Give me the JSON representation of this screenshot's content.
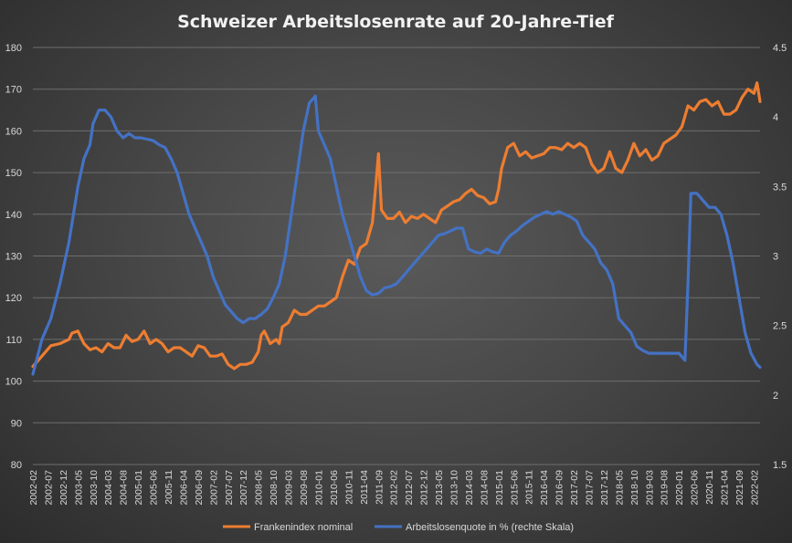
{
  "chart_data": {
    "type": "line",
    "title": "Schweizer Arbeitslosenrate auf 20-Jahre-Tief",
    "xlabel": "",
    "ylabel_left": "",
    "ylabel_right": "",
    "ylim_left": [
      80,
      180
    ],
    "yticks_left": [
      80,
      90,
      100,
      110,
      120,
      130,
      140,
      150,
      160,
      170,
      180
    ],
    "ylim_right": [
      1.5,
      4.5
    ],
    "yticks_right": [
      "1.5",
      "2",
      "2.5",
      "3",
      "3.5",
      "4",
      "4.5"
    ],
    "x_start": "2002-02",
    "x_end": "2022-04",
    "xtick_labels": [
      "2002-02",
      "2002-07",
      "2002-12",
      "2003-05",
      "2003-10",
      "2004-03",
      "2004-08",
      "2005-01",
      "2005-06",
      "2005-11",
      "2006-04",
      "2006-09",
      "2007-02",
      "2007-07",
      "2007-12",
      "2008-05",
      "2008-10",
      "2009-03",
      "2009-08",
      "2010-01",
      "2010-06",
      "2010-11",
      "2011-04",
      "2011-09",
      "2012-02",
      "2012-07",
      "2012-12",
      "2013-05",
      "2013-10",
      "2014-03",
      "2014-08",
      "2015-01",
      "2015-06",
      "2015-11",
      "2016-04",
      "2016-09",
      "2017-02",
      "2017-07",
      "2017-12",
      "2018-05",
      "2018-10",
      "2019-03",
      "2019-08",
      "2020-01",
      "2020-06",
      "2020-11",
      "2021-04",
      "2021-09",
      "2022-02"
    ],
    "grid": true,
    "legend_position": "bottom",
    "series": [
      {
        "name": "Frankenindex nominal",
        "axis": "left",
        "color": "#ed7d31",
        "points": [
          [
            "2002-02",
            103.5
          ],
          [
            "2002-05",
            106
          ],
          [
            "2002-08",
            108.5
          ],
          [
            "2002-11",
            109
          ],
          [
            "2003-02",
            110
          ],
          [
            "2003-03",
            111.5
          ],
          [
            "2003-05",
            112
          ],
          [
            "2003-07",
            109
          ],
          [
            "2003-09",
            107.5
          ],
          [
            "2003-11",
            108
          ],
          [
            "2004-01",
            107
          ],
          [
            "2004-03",
            109
          ],
          [
            "2004-05",
            108
          ],
          [
            "2004-07",
            108
          ],
          [
            "2004-09",
            111
          ],
          [
            "2004-11",
            109.5
          ],
          [
            "2005-01",
            110
          ],
          [
            "2005-03",
            112
          ],
          [
            "2005-05",
            109
          ],
          [
            "2005-07",
            110
          ],
          [
            "2005-09",
            109
          ],
          [
            "2005-11",
            107
          ],
          [
            "2006-01",
            108
          ],
          [
            "2006-03",
            108
          ],
          [
            "2006-05",
            107
          ],
          [
            "2006-07",
            106
          ],
          [
            "2006-09",
            108.5
          ],
          [
            "2006-11",
            108
          ],
          [
            "2007-01",
            106
          ],
          [
            "2007-03",
            106
          ],
          [
            "2007-05",
            106.5
          ],
          [
            "2007-07",
            104
          ],
          [
            "2007-09",
            103
          ],
          [
            "2007-11",
            104
          ],
          [
            "2008-01",
            104
          ],
          [
            "2008-03",
            104.5
          ],
          [
            "2008-05",
            107
          ],
          [
            "2008-06",
            111
          ],
          [
            "2008-07",
            112
          ],
          [
            "2008-09",
            109
          ],
          [
            "2008-11",
            110
          ],
          [
            "2008-12",
            109
          ],
          [
            "2009-01",
            113
          ],
          [
            "2009-03",
            114
          ],
          [
            "2009-05",
            117
          ],
          [
            "2009-07",
            116
          ],
          [
            "2009-09",
            116
          ],
          [
            "2009-11",
            117
          ],
          [
            "2010-01",
            118
          ],
          [
            "2010-03",
            118
          ],
          [
            "2010-05",
            119
          ],
          [
            "2010-07",
            120
          ],
          [
            "2010-09",
            125
          ],
          [
            "2010-11",
            129
          ],
          [
            "2011-01",
            128
          ],
          [
            "2011-03",
            132
          ],
          [
            "2011-05",
            133
          ],
          [
            "2011-07",
            138
          ],
          [
            "2011-08",
            146
          ],
          [
            "2011-09",
            154.5
          ],
          [
            "2011-10",
            141
          ],
          [
            "2011-12",
            139
          ],
          [
            "2012-02",
            139
          ],
          [
            "2012-04",
            140.5
          ],
          [
            "2012-06",
            138
          ],
          [
            "2012-08",
            139.5
          ],
          [
            "2012-10",
            139
          ],
          [
            "2012-12",
            140
          ],
          [
            "2013-02",
            139
          ],
          [
            "2013-04",
            138
          ],
          [
            "2013-06",
            141
          ],
          [
            "2013-08",
            142
          ],
          [
            "2013-10",
            143
          ],
          [
            "2013-12",
            143.5
          ],
          [
            "2014-02",
            145
          ],
          [
            "2014-04",
            146
          ],
          [
            "2014-06",
            144.5
          ],
          [
            "2014-08",
            144
          ],
          [
            "2014-10",
            142.5
          ],
          [
            "2014-12",
            143
          ],
          [
            "2015-01",
            146
          ],
          [
            "2015-02",
            151
          ],
          [
            "2015-04",
            156
          ],
          [
            "2015-06",
            157
          ],
          [
            "2015-08",
            154
          ],
          [
            "2015-10",
            155
          ],
          [
            "2015-12",
            153.5
          ],
          [
            "2016-02",
            154
          ],
          [
            "2016-04",
            154.5
          ],
          [
            "2016-06",
            156
          ],
          [
            "2016-08",
            156
          ],
          [
            "2016-10",
            155.5
          ],
          [
            "2016-12",
            157
          ],
          [
            "2017-02",
            156
          ],
          [
            "2017-04",
            157
          ],
          [
            "2017-06",
            156
          ],
          [
            "2017-08",
            152
          ],
          [
            "2017-10",
            150
          ],
          [
            "2017-12",
            151
          ],
          [
            "2018-02",
            155
          ],
          [
            "2018-04",
            151
          ],
          [
            "2018-06",
            150
          ],
          [
            "2018-08",
            153
          ],
          [
            "2018-10",
            157
          ],
          [
            "2018-12",
            154
          ],
          [
            "2019-02",
            155.5
          ],
          [
            "2019-04",
            153
          ],
          [
            "2019-06",
            154
          ],
          [
            "2019-08",
            157
          ],
          [
            "2019-10",
            158
          ],
          [
            "2019-12",
            159
          ],
          [
            "2020-02",
            161
          ],
          [
            "2020-04",
            166
          ],
          [
            "2020-06",
            165
          ],
          [
            "2020-08",
            167
          ],
          [
            "2020-10",
            167.5
          ],
          [
            "2020-12",
            166
          ],
          [
            "2021-02",
            167
          ],
          [
            "2021-04",
            164
          ],
          [
            "2021-06",
            164
          ],
          [
            "2021-08",
            165
          ],
          [
            "2021-10",
            168
          ],
          [
            "2021-12",
            170
          ],
          [
            "2022-02",
            169
          ],
          [
            "2022-03",
            171.5
          ],
          [
            "2022-04",
            167
          ]
        ]
      },
      {
        "name": "Arbeitslosenquote in % (rechte Skala)",
        "axis": "right",
        "color": "#4472c4",
        "points": [
          [
            "2002-02",
            2.15
          ],
          [
            "2002-05",
            2.4
          ],
          [
            "2002-08",
            2.55
          ],
          [
            "2002-11",
            2.8
          ],
          [
            "2003-02",
            3.1
          ],
          [
            "2003-05",
            3.5
          ],
          [
            "2003-07",
            3.7
          ],
          [
            "2003-09",
            3.8
          ],
          [
            "2003-10",
            3.95
          ],
          [
            "2003-12",
            4.05
          ],
          [
            "2004-02",
            4.05
          ],
          [
            "2004-04",
            4.0
          ],
          [
            "2004-06",
            3.9
          ],
          [
            "2004-08",
            3.85
          ],
          [
            "2004-10",
            3.88
          ],
          [
            "2004-12",
            3.85
          ],
          [
            "2005-02",
            3.85
          ],
          [
            "2005-04",
            3.84
          ],
          [
            "2005-06",
            3.83
          ],
          [
            "2005-08",
            3.8
          ],
          [
            "2005-10",
            3.78
          ],
          [
            "2005-12",
            3.7
          ],
          [
            "2006-02",
            3.6
          ],
          [
            "2006-04",
            3.45
          ],
          [
            "2006-06",
            3.3
          ],
          [
            "2006-08",
            3.2
          ],
          [
            "2006-10",
            3.1
          ],
          [
            "2006-12",
            3.0
          ],
          [
            "2007-02",
            2.85
          ],
          [
            "2007-04",
            2.75
          ],
          [
            "2007-06",
            2.65
          ],
          [
            "2007-08",
            2.6
          ],
          [
            "2007-10",
            2.55
          ],
          [
            "2007-12",
            2.52
          ],
          [
            "2008-02",
            2.55
          ],
          [
            "2008-04",
            2.55
          ],
          [
            "2008-06",
            2.58
          ],
          [
            "2008-08",
            2.62
          ],
          [
            "2008-10",
            2.7
          ],
          [
            "2008-12",
            2.8
          ],
          [
            "2009-02",
            3.0
          ],
          [
            "2009-04",
            3.3
          ],
          [
            "2009-06",
            3.6
          ],
          [
            "2009-08",
            3.9
          ],
          [
            "2009-10",
            4.1
          ],
          [
            "2009-12",
            4.15
          ],
          [
            "2010-01",
            3.9
          ],
          [
            "2010-03",
            3.8
          ],
          [
            "2010-05",
            3.7
          ],
          [
            "2010-07",
            3.5
          ],
          [
            "2010-09",
            3.3
          ],
          [
            "2010-11",
            3.15
          ],
          [
            "2011-01",
            3.0
          ],
          [
            "2011-03",
            2.85
          ],
          [
            "2011-05",
            2.75
          ],
          [
            "2011-07",
            2.72
          ],
          [
            "2011-09",
            2.73
          ],
          [
            "2011-11",
            2.77
          ],
          [
            "2012-01",
            2.78
          ],
          [
            "2012-03",
            2.8
          ],
          [
            "2012-05",
            2.85
          ],
          [
            "2012-07",
            2.9
          ],
          [
            "2012-09",
            2.95
          ],
          [
            "2012-11",
            3.0
          ],
          [
            "2013-01",
            3.05
          ],
          [
            "2013-03",
            3.1
          ],
          [
            "2013-05",
            3.15
          ],
          [
            "2013-07",
            3.16
          ],
          [
            "2013-09",
            3.18
          ],
          [
            "2013-11",
            3.2
          ],
          [
            "2014-01",
            3.2
          ],
          [
            "2014-03",
            3.05
          ],
          [
            "2014-05",
            3.03
          ],
          [
            "2014-07",
            3.02
          ],
          [
            "2014-09",
            3.05
          ],
          [
            "2014-11",
            3.03
          ],
          [
            "2015-01",
            3.02
          ],
          [
            "2015-03",
            3.1
          ],
          [
            "2015-05",
            3.15
          ],
          [
            "2015-07",
            3.18
          ],
          [
            "2015-09",
            3.22
          ],
          [
            "2015-11",
            3.25
          ],
          [
            "2016-01",
            3.28
          ],
          [
            "2016-03",
            3.3
          ],
          [
            "2016-05",
            3.32
          ],
          [
            "2016-07",
            3.3
          ],
          [
            "2016-09",
            3.32
          ],
          [
            "2016-11",
            3.3
          ],
          [
            "2017-01",
            3.28
          ],
          [
            "2017-03",
            3.25
          ],
          [
            "2017-05",
            3.15
          ],
          [
            "2017-07",
            3.1
          ],
          [
            "2017-09",
            3.05
          ],
          [
            "2017-11",
            2.95
          ],
          [
            "2018-01",
            2.9
          ],
          [
            "2018-03",
            2.8
          ],
          [
            "2018-05",
            2.55
          ],
          [
            "2018-07",
            2.5
          ],
          [
            "2018-09",
            2.45
          ],
          [
            "2018-11",
            2.35
          ],
          [
            "2019-01",
            2.32
          ],
          [
            "2019-03",
            2.3
          ],
          [
            "2019-05",
            2.3
          ],
          [
            "2019-07",
            2.3
          ],
          [
            "2019-09",
            2.3
          ],
          [
            "2019-11",
            2.3
          ],
          [
            "2020-01",
            2.3
          ],
          [
            "2020-03",
            2.25
          ],
          [
            "2020-04",
            2.8
          ],
          [
            "2020-05",
            3.45
          ],
          [
            "2020-07",
            3.45
          ],
          [
            "2020-09",
            3.4
          ],
          [
            "2020-11",
            3.35
          ],
          [
            "2021-01",
            3.35
          ],
          [
            "2021-03",
            3.3
          ],
          [
            "2021-05",
            3.15
          ],
          [
            "2021-07",
            2.95
          ],
          [
            "2021-09",
            2.7
          ],
          [
            "2021-11",
            2.45
          ],
          [
            "2022-01",
            2.3
          ],
          [
            "2022-03",
            2.22
          ],
          [
            "2022-04",
            2.2
          ]
        ]
      }
    ]
  }
}
